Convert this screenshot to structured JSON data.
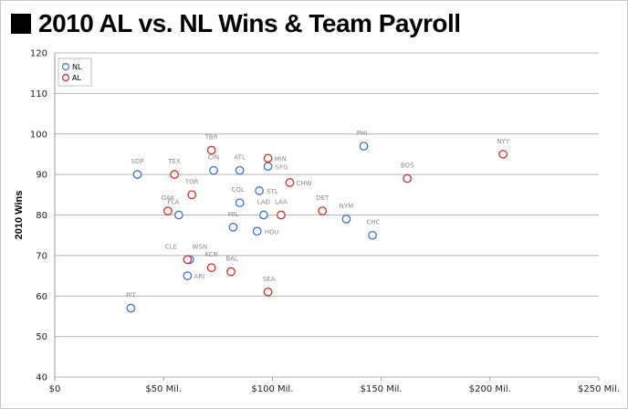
{
  "title": "2010 AL vs. NL Wins & Team Payroll",
  "chart_data": {
    "type": "scatter",
    "ylabel": "2010 Wins",
    "xlabel": "",
    "xlim": [
      0,
      250
    ],
    "ylim": [
      40,
      120
    ],
    "x_ticks": [
      0,
      50,
      100,
      150,
      200,
      250
    ],
    "x_tick_labels": [
      "$0",
      "$50 Mil.",
      "$100 Mil.",
      "$150 Mil.",
      "$200 Mil.",
      "$250 Mil."
    ],
    "y_ticks": [
      40,
      50,
      60,
      70,
      80,
      90,
      100,
      110,
      120
    ],
    "y_tick_labels": [
      "40",
      "50",
      "60",
      "70",
      "80",
      "90",
      "100",
      "110",
      "120"
    ],
    "grid": "horizontal",
    "legend_position": "top-left",
    "series": [
      {
        "name": "NL",
        "color": "#3a6fd8",
        "points": [
          {
            "label": "SDP",
            "x": 38,
            "y": 90
          },
          {
            "label": "FLA",
            "x": 57,
            "y": 80
          },
          {
            "label": "CIN",
            "x": 73,
            "y": 91
          },
          {
            "label": "ATL",
            "x": 85,
            "y": 91
          },
          {
            "label": "COL",
            "x": 85,
            "y": 83
          },
          {
            "label": "MIL",
            "x": 82,
            "y": 77
          },
          {
            "label": "STL",
            "x": 94,
            "y": 86
          },
          {
            "label": "SFG",
            "x": 98,
            "y": 92
          },
          {
            "label": "LAD",
            "x": 96,
            "y": 80
          },
          {
            "label": "HOU",
            "x": 93,
            "y": 76
          },
          {
            "label": "ARI",
            "x": 61,
            "y": 65
          },
          {
            "label": "WSN",
            "x": 62,
            "y": 69
          },
          {
            "label": "PIT",
            "x": 35,
            "y": 57
          },
          {
            "label": "PHI",
            "x": 142,
            "y": 97
          },
          {
            "label": "NYM",
            "x": 134,
            "y": 79
          },
          {
            "label": "CHC",
            "x": 146,
            "y": 75
          }
        ]
      },
      {
        "name": "AL",
        "color": "#d12a2a",
        "points": [
          {
            "label": "TEX",
            "x": 55,
            "y": 90
          },
          {
            "label": "TBR",
            "x": 72,
            "y": 96
          },
          {
            "label": "TOR",
            "x": 63,
            "y": 85
          },
          {
            "label": "OAK",
            "x": 52,
            "y": 81
          },
          {
            "label": "CLE",
            "x": 61,
            "y": 69
          },
          {
            "label": "KCR",
            "x": 72,
            "y": 67
          },
          {
            "label": "BAL",
            "x": 81,
            "y": 66
          },
          {
            "label": "MIN",
            "x": 98,
            "y": 94
          },
          {
            "label": "CHW",
            "x": 108,
            "y": 88
          },
          {
            "label": "LAA",
            "x": 104,
            "y": 80
          },
          {
            "label": "SEA",
            "x": 98,
            "y": 61
          },
          {
            "label": "DET",
            "x": 123,
            "y": 81
          },
          {
            "label": "BOS",
            "x": 162,
            "y": 89
          },
          {
            "label": "NYY",
            "x": 206,
            "y": 95
          }
        ]
      }
    ]
  }
}
